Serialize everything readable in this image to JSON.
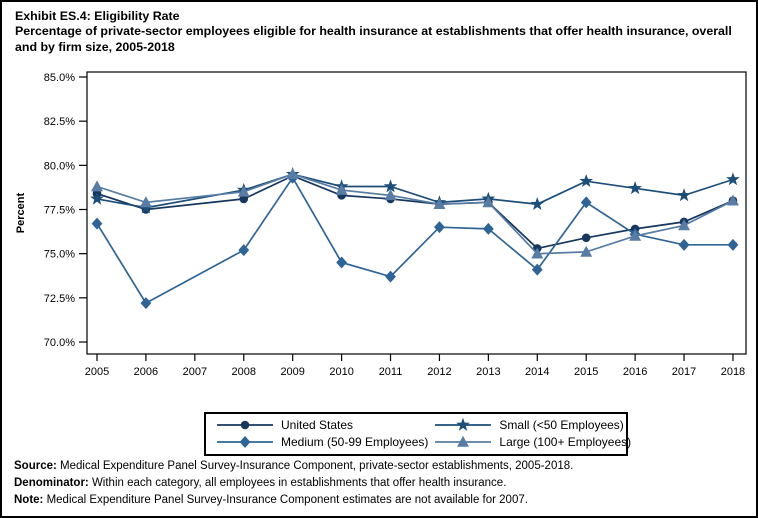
{
  "title": {
    "line1": "Exhibit ES.4: Eligibility Rate",
    "line2": "Percentage of private-sector employees eligible for health insurance at establishments that offer health insurance, overall and by firm size, 2005-2018"
  },
  "chart_data": {
    "type": "line",
    "title": "Eligibility Rate: Percentage of private-sector employees eligible for health insurance at establishments that offer health insurance, overall and by firm size, 2005-2018",
    "xlabel": "",
    "ylabel": "Percent",
    "x_ticks": [
      2005,
      2006,
      2007,
      2008,
      2009,
      2010,
      2011,
      2012,
      2013,
      2014,
      2015,
      2016,
      2017,
      2018
    ],
    "y_tick_labels": [
      "85.0%",
      "82.5%",
      "80.0%",
      "77.5%",
      "75.0%",
      "72.5%",
      "70.0%"
    ],
    "y_tick_values": [
      85.0,
      82.5,
      80.0,
      77.5,
      75.0,
      72.5,
      70.0
    ],
    "ylim": [
      70.0,
      85.0
    ],
    "grid": "off",
    "legend_position": "bottom",
    "missing_data_note": "No estimates for 2007",
    "x": [
      2005,
      2006,
      2008,
      2009,
      2010,
      2011,
      2012,
      2013,
      2014,
      2015,
      2016,
      2017,
      2018
    ],
    "series": [
      {
        "name": "United States",
        "marker": "circle",
        "color": "#17375e",
        "values": [
          78.4,
          77.5,
          78.1,
          79.4,
          78.3,
          78.1,
          77.8,
          77.9,
          75.3,
          75.9,
          76.4,
          76.8,
          78.0
        ]
      },
      {
        "name": "Small (<50 Employees)",
        "marker": "star",
        "color": "#1d4e79",
        "values": [
          78.1,
          77.6,
          78.6,
          79.5,
          78.8,
          78.8,
          77.9,
          78.1,
          77.8,
          79.1,
          78.7,
          78.3,
          79.2
        ]
      },
      {
        "name": "Medium (50-99 Employees)",
        "marker": "diamond",
        "color": "#2e6496",
        "values": [
          76.7,
          72.2,
          75.2,
          79.3,
          74.5,
          73.7,
          76.5,
          76.4,
          74.1,
          77.9,
          76.1,
          75.5,
          75.5
        ]
      },
      {
        "name": "Large (100+ Employees)",
        "marker": "triangle",
        "color": "#587ca4",
        "values": [
          78.8,
          77.9,
          78.5,
          79.5,
          78.6,
          78.3,
          77.8,
          77.9,
          75.0,
          75.1,
          76.0,
          76.6,
          78.0
        ]
      }
    ],
    "legend_order": [
      0,
      1,
      2,
      3
    ]
  },
  "footnotes": [
    {
      "label": "Source:",
      "text": " Medical Expenditure Panel Survey-Insurance Component, private-sector establishments, 2005-2018."
    },
    {
      "label": "Denominator:",
      "text": " Within each category, all employees in establishments that offer health insurance."
    },
    {
      "label": "Note:",
      "text": " Medical Expenditure Panel Survey-Insurance Component estimates are not available for 2007."
    }
  ]
}
